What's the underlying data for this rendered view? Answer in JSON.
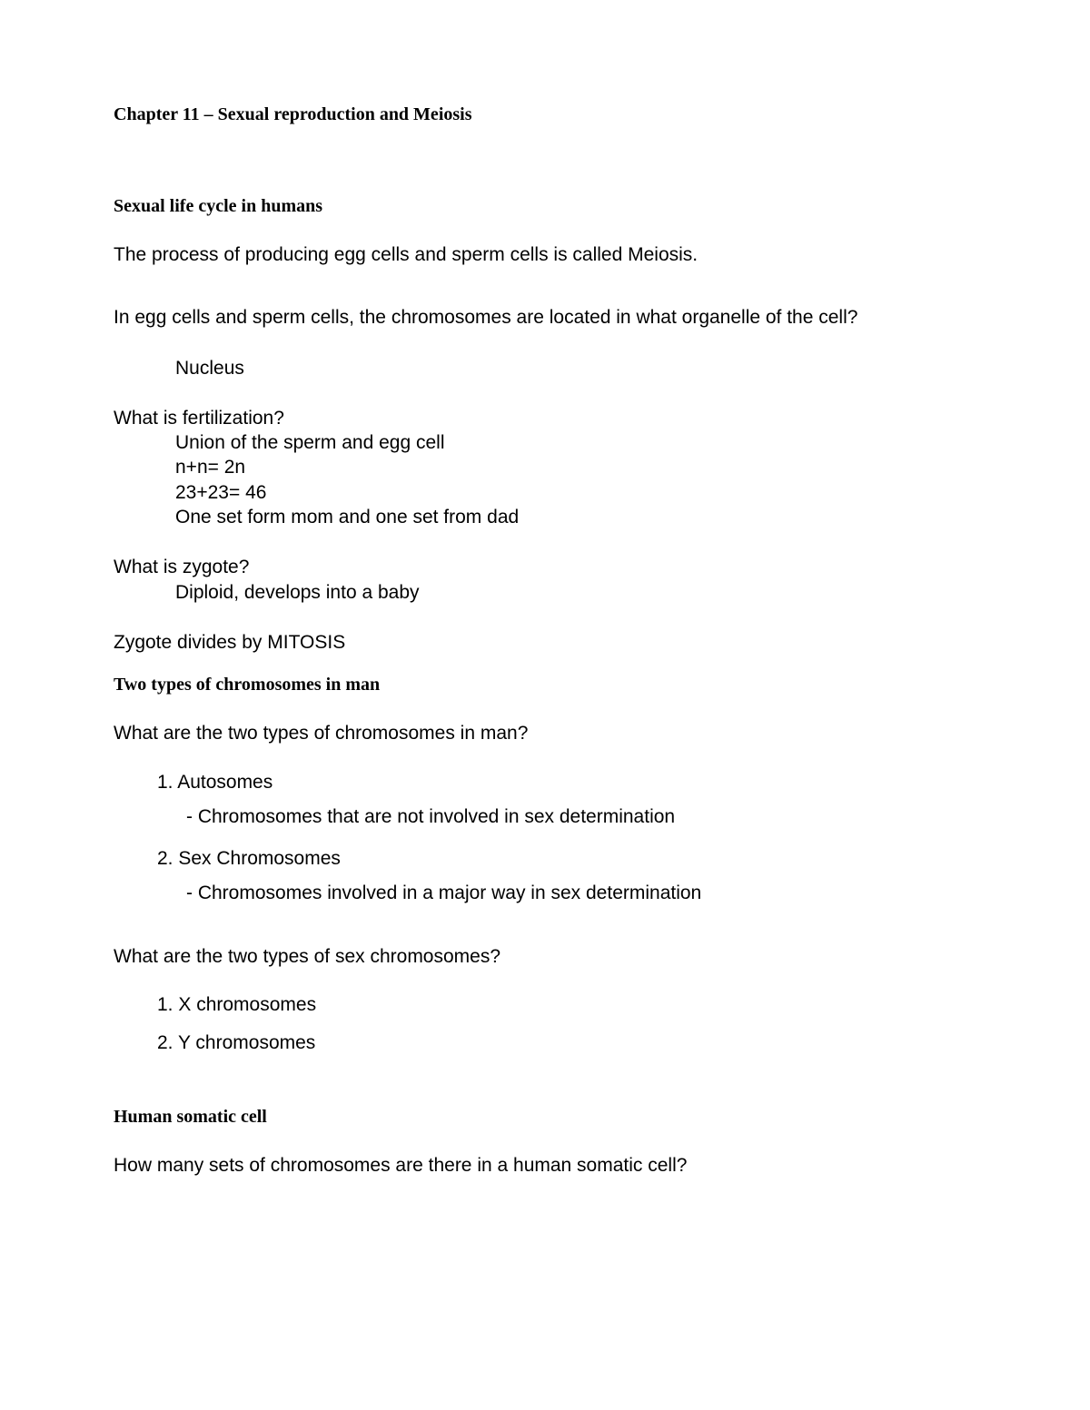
{
  "chapter": {
    "title": "Chapter 11 – Sexual reproduction and Meiosis"
  },
  "sections": {
    "lifeCycle": {
      "heading": "Sexual life cycle in humans",
      "intro": "The process of producing egg cells and sperm cells is called  Meiosis.",
      "q1": "In egg cells and sperm cells, the chromosomes are located in what organelle of the cell?",
      "a1": "Nucleus",
      "q2": "What is fertilization?",
      "a2_line1": "Union of the sperm and egg cell",
      "a2_line2": "n+n= 2n",
      "a2_line3": "23+23= 46",
      "a2_line4": "One set form mom and one set from dad",
      "q3": "What is zygote?",
      "a3": "Diploid, develops into a baby",
      "statement": "Zygote divides by  MITOSIS"
    },
    "chromosomeTypes": {
      "heading": "Two types of chromosomes in man",
      "q1": "What are the two types of chromosomes in man?",
      "item1": "1.  Autosomes",
      "item1_sub": "- Chromosomes that are not involved in sex determination",
      "item2": "2. Sex Chromosomes",
      "item2_sub": "- Chromosomes involved in a major way in sex determination",
      "q2": "What are the two types of sex chromosomes?",
      "sx1": "1. X chromosomes",
      "sx2": "2. Y chromosomes"
    },
    "somatic": {
      "heading": "Human somatic cell",
      "q1": "How many sets of chromosomes are there in a human somatic cell?"
    }
  },
  "style": {
    "text_color": "#000000",
    "background_color": "#ffffff",
    "heading_font": "Georgia",
    "body_font": "Verdana",
    "heading_fontsize": 20,
    "body_fontsize": 21
  }
}
